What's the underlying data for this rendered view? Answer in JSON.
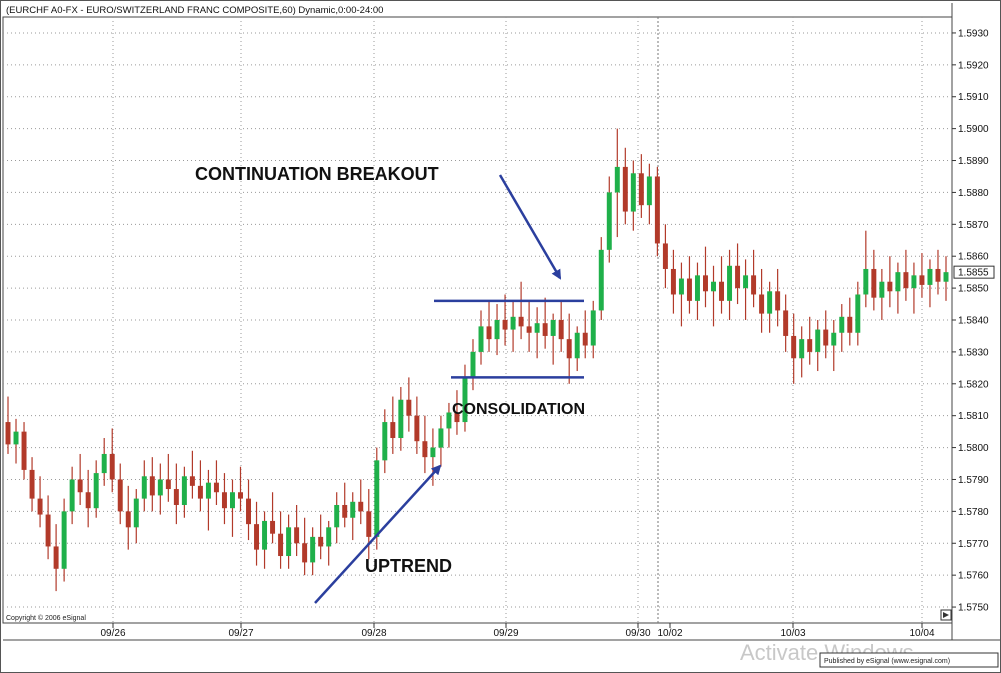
{
  "window": {
    "title": "(EURCHF A0-FX - EURO/SWITZERLAND FRANC COMPOSITE,60) Dynamic,0:00-24:00",
    "copyright": "Copyright © 2006 eSignal",
    "published": "Published by eSignal (www.esignal.com)",
    "watermark": "Activate Windows"
  },
  "chart_data": {
    "type": "candlestick",
    "title": "(EURCHF A0-FX - EURO/SWITZERLAND FRANC COMPOSITE,60) Dynamic,0:00-24:00",
    "ylim": [
      1.5745,
      1.5935
    ],
    "yticks": [
      "1.5930",
      "1.5920",
      "1.5910",
      "1.5900",
      "1.5890",
      "1.5880",
      "1.5870",
      "1.5860",
      "1.5850",
      "1.5840",
      "1.5830",
      "1.5820",
      "1.5810",
      "1.5800",
      "1.5790",
      "1.5780",
      "1.5770",
      "1.5760",
      "1.5750"
    ],
    "current_price_label": "1.5855",
    "current_price": 1.5855,
    "xticks": [
      "09/26",
      "09/27",
      "09/28",
      "09/29",
      "09/30",
      "10/02",
      "10/03",
      "10/04"
    ],
    "grid": true,
    "up_color": "#1fb04a",
    "down_color": "#b23a2a",
    "annotation_color": "#2b3f9e",
    "annotations": [
      {
        "text": "CONTINUATION BREAKOUT"
      },
      {
        "text": "CONSOLIDATION"
      },
      {
        "text": "UPTREND"
      }
    ],
    "consolidation_upper": 1.5846,
    "consolidation_lower": 1.5822,
    "candles": [
      [
        1.5808,
        1.5816,
        1.5798,
        1.5801
      ],
      [
        1.5801,
        1.5809,
        1.5795,
        1.5805
      ],
      [
        1.5805,
        1.5808,
        1.579,
        1.5793
      ],
      [
        1.5793,
        1.5797,
        1.578,
        1.5784
      ],
      [
        1.5784,
        1.5791,
        1.5775,
        1.5779
      ],
      [
        1.5779,
        1.5785,
        1.5765,
        1.5769
      ],
      [
        1.5769,
        1.5776,
        1.5755,
        1.5762
      ],
      [
        1.5762,
        1.5784,
        1.5758,
        1.578
      ],
      [
        1.578,
        1.5794,
        1.5776,
        1.579
      ],
      [
        1.579,
        1.5798,
        1.5782,
        1.5786
      ],
      [
        1.5786,
        1.5793,
        1.5775,
        1.5781
      ],
      [
        1.5781,
        1.5796,
        1.5778,
        1.5792
      ],
      [
        1.5792,
        1.5803,
        1.5788,
        1.5798
      ],
      [
        1.5798,
        1.5806,
        1.5786,
        1.579
      ],
      [
        1.579,
        1.5795,
        1.5776,
        1.578
      ],
      [
        1.578,
        1.5788,
        1.5768,
        1.5775
      ],
      [
        1.5775,
        1.5787,
        1.577,
        1.5784
      ],
      [
        1.5784,
        1.5796,
        1.578,
        1.5791
      ],
      [
        1.5791,
        1.5797,
        1.578,
        1.5785
      ],
      [
        1.5785,
        1.5795,
        1.5779,
        1.579
      ],
      [
        1.579,
        1.5798,
        1.5783,
        1.5787
      ],
      [
        1.5787,
        1.5795,
        1.5776,
        1.5782
      ],
      [
        1.5782,
        1.5794,
        1.5778,
        1.5791
      ],
      [
        1.5791,
        1.5799,
        1.5784,
        1.5788
      ],
      [
        1.5788,
        1.5796,
        1.578,
        1.5784
      ],
      [
        1.5784,
        1.5793,
        1.5774,
        1.5789
      ],
      [
        1.5789,
        1.5796,
        1.5782,
        1.5786
      ],
      [
        1.5786,
        1.5792,
        1.5776,
        1.5781
      ],
      [
        1.5781,
        1.579,
        1.5772,
        1.5786
      ],
      [
        1.5786,
        1.5794,
        1.578,
        1.5784
      ],
      [
        1.5784,
        1.579,
        1.5771,
        1.5776
      ],
      [
        1.5776,
        1.5783,
        1.5763,
        1.5768
      ],
      [
        1.5768,
        1.578,
        1.5762,
        1.5777
      ],
      [
        1.5777,
        1.5786,
        1.577,
        1.5773
      ],
      [
        1.5773,
        1.578,
        1.5762,
        1.5766
      ],
      [
        1.5766,
        1.5779,
        1.5762,
        1.5775
      ],
      [
        1.5775,
        1.5782,
        1.5766,
        1.577
      ],
      [
        1.577,
        1.5778,
        1.576,
        1.5764
      ],
      [
        1.5764,
        1.5775,
        1.576,
        1.5772
      ],
      [
        1.5772,
        1.5779,
        1.5765,
        1.5769
      ],
      [
        1.5769,
        1.5777,
        1.5763,
        1.5775
      ],
      [
        1.5775,
        1.5786,
        1.577,
        1.5782
      ],
      [
        1.5782,
        1.5789,
        1.5775,
        1.5778
      ],
      [
        1.5778,
        1.5786,
        1.5771,
        1.5783
      ],
      [
        1.5783,
        1.579,
        1.5776,
        1.578
      ],
      [
        1.578,
        1.5787,
        1.5765,
        1.5772
      ],
      [
        1.5772,
        1.58,
        1.5768,
        1.5796
      ],
      [
        1.5796,
        1.5812,
        1.5792,
        1.5808
      ],
      [
        1.5808,
        1.5816,
        1.5798,
        1.5803
      ],
      [
        1.5803,
        1.5819,
        1.5799,
        1.5815
      ],
      [
        1.5815,
        1.5822,
        1.5805,
        1.581
      ],
      [
        1.581,
        1.5816,
        1.5798,
        1.5802
      ],
      [
        1.5802,
        1.581,
        1.5792,
        1.5797
      ],
      [
        1.5797,
        1.5806,
        1.5788,
        1.58
      ],
      [
        1.58,
        1.581,
        1.5794,
        1.5806
      ],
      [
        1.5806,
        1.5814,
        1.58,
        1.5811
      ],
      [
        1.5811,
        1.5818,
        1.5804,
        1.5808
      ],
      [
        1.5808,
        1.5826,
        1.5805,
        1.5822
      ],
      [
        1.5822,
        1.5834,
        1.5818,
        1.583
      ],
      [
        1.583,
        1.5843,
        1.5826,
        1.5838
      ],
      [
        1.5838,
        1.5846,
        1.583,
        1.5834
      ],
      [
        1.5834,
        1.5845,
        1.5829,
        1.584
      ],
      [
        1.584,
        1.5848,
        1.5832,
        1.5837
      ],
      [
        1.5837,
        1.5846,
        1.583,
        1.5841
      ],
      [
        1.5841,
        1.5852,
        1.5834,
        1.5838
      ],
      [
        1.5838,
        1.5846,
        1.583,
        1.5836
      ],
      [
        1.5836,
        1.5844,
        1.5828,
        1.5839
      ],
      [
        1.5839,
        1.5847,
        1.5831,
        1.5835
      ],
      [
        1.5835,
        1.5842,
        1.5826,
        1.584
      ],
      [
        1.584,
        1.5846,
        1.583,
        1.5834
      ],
      [
        1.5834,
        1.5842,
        1.582,
        1.5828
      ],
      [
        1.5828,
        1.5838,
        1.5824,
        1.5836
      ],
      [
        1.5836,
        1.5843,
        1.5828,
        1.5832
      ],
      [
        1.5832,
        1.5846,
        1.5828,
        1.5843
      ],
      [
        1.5843,
        1.5866,
        1.584,
        1.5862
      ],
      [
        1.5862,
        1.5885,
        1.5858,
        1.588
      ],
      [
        1.588,
        1.59,
        1.5866,
        1.5888
      ],
      [
        1.5888,
        1.5894,
        1.587,
        1.5874
      ],
      [
        1.5874,
        1.589,
        1.5868,
        1.5886
      ],
      [
        1.5886,
        1.5892,
        1.5872,
        1.5876
      ],
      [
        1.5876,
        1.5889,
        1.587,
        1.5885
      ],
      [
        1.5885,
        1.5888,
        1.586,
        1.5864
      ],
      [
        1.5864,
        1.587,
        1.585,
        1.5856
      ],
      [
        1.5856,
        1.5862,
        1.5842,
        1.5848
      ],
      [
        1.5848,
        1.5858,
        1.5838,
        1.5853
      ],
      [
        1.5853,
        1.586,
        1.5842,
        1.5846
      ],
      [
        1.5846,
        1.5858,
        1.584,
        1.5854
      ],
      [
        1.5854,
        1.5863,
        1.5844,
        1.5849
      ],
      [
        1.5849,
        1.5857,
        1.5838,
        1.5852
      ],
      [
        1.5852,
        1.586,
        1.5842,
        1.5846
      ],
      [
        1.5846,
        1.5862,
        1.584,
        1.5857
      ],
      [
        1.5857,
        1.5864,
        1.5845,
        1.585
      ],
      [
        1.585,
        1.5859,
        1.584,
        1.5854
      ],
      [
        1.5854,
        1.5862,
        1.5844,
        1.5848
      ],
      [
        1.5848,
        1.5856,
        1.5836,
        1.5842
      ],
      [
        1.5842,
        1.5852,
        1.5836,
        1.5849
      ],
      [
        1.5849,
        1.5856,
        1.5838,
        1.5843
      ],
      [
        1.5843,
        1.5848,
        1.583,
        1.5835
      ],
      [
        1.5835,
        1.5842,
        1.582,
        1.5828
      ],
      [
        1.5828,
        1.5838,
        1.5822,
        1.5834
      ],
      [
        1.5834,
        1.5841,
        1.5826,
        1.583
      ],
      [
        1.583,
        1.584,
        1.5824,
        1.5837
      ],
      [
        1.5837,
        1.5843,
        1.5828,
        1.5832
      ],
      [
        1.5832,
        1.584,
        1.5824,
        1.5836
      ],
      [
        1.5836,
        1.5845,
        1.583,
        1.5841
      ],
      [
        1.5841,
        1.5847,
        1.5832,
        1.5836
      ],
      [
        1.5836,
        1.5852,
        1.5832,
        1.5848
      ],
      [
        1.5848,
        1.5868,
        1.5844,
        1.5856
      ],
      [
        1.5856,
        1.5862,
        1.5843,
        1.5847
      ],
      [
        1.5847,
        1.5856,
        1.584,
        1.5852
      ],
      [
        1.5852,
        1.586,
        1.5844,
        1.5849
      ],
      [
        1.5849,
        1.5858,
        1.5842,
        1.5855
      ],
      [
        1.5855,
        1.5862,
        1.5846,
        1.585
      ],
      [
        1.585,
        1.5858,
        1.5842,
        1.5854
      ],
      [
        1.5854,
        1.5861,
        1.5847,
        1.5851
      ],
      [
        1.5851,
        1.5859,
        1.5844,
        1.5856
      ],
      [
        1.5856,
        1.5862,
        1.5848,
        1.5852
      ],
      [
        1.5852,
        1.586,
        1.5846,
        1.5855
      ]
    ]
  }
}
